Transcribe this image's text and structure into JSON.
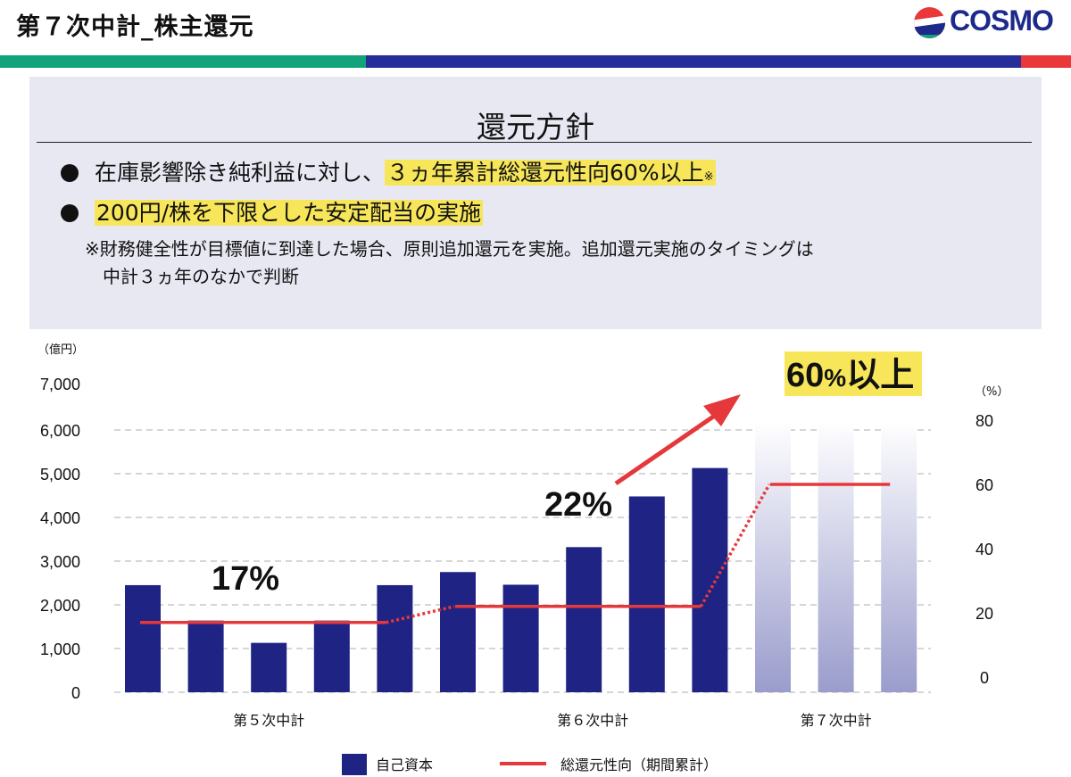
{
  "header": {
    "title": "第７次中計_株主還元",
    "logo_text": "COSMO"
  },
  "colors": {
    "green": "#12a37a",
    "blue": "#272e9a",
    "red": "#e9373a",
    "bar": "#1f2383",
    "line": "#e5383b",
    "highlight": "#f7e65a"
  },
  "policy": {
    "title": "還元方針",
    "bullet1_prefix": "在庫影響除き純利益に対し、",
    "bullet1_highlight": "３ヵ年累計総還元性向60%以上",
    "bullet1_mark": "※",
    "bullet2_highlight": "200円/株を下限とした安定配当の実施",
    "note_line1": "※財務健全性が目標値に到達した場合、原則追加還元を実施。追加還元実施のタイミングは",
    "note_line2": "中計３ヵ年のなかで判断"
  },
  "chart_data": {
    "type": "bar",
    "y_unit": "（億円）",
    "y2_unit": "（%）",
    "ylim": [
      0,
      7000
    ],
    "yticks": [
      "7,000",
      "6,000",
      "5,000",
      "4,000",
      "3,000",
      "2,000",
      "1,000",
      "0"
    ],
    "y2lim": [
      0,
      80
    ],
    "y2ticks": [
      "80",
      "60",
      "40",
      "20",
      "0"
    ],
    "grid": true,
    "groups": [
      "第５次中計",
      "第６次中計",
      "第７次中計"
    ],
    "series": [
      {
        "name": "自己資本",
        "type": "bar",
        "values": [
          2450,
          1640,
          1130,
          1640,
          2450,
          2750,
          2460,
          3320,
          4480,
          5130,
          null,
          null,
          null
        ],
        "projected": [
          false,
          false,
          false,
          false,
          false,
          false,
          false,
          false,
          false,
          false,
          true,
          true,
          true
        ]
      },
      {
        "name": "総還元性向（期間累計）",
        "type": "line",
        "segments": [
          {
            "value": 17,
            "from_bar": 0,
            "to_bar": 4
          },
          {
            "value": 22,
            "from_bar": 5,
            "to_bar": 9
          },
          {
            "value": 60,
            "from_bar": 10,
            "to_bar": 12
          }
        ]
      }
    ],
    "annotations": {
      "label_5th": "17%",
      "label_6th": "22%",
      "target_big": "60",
      "target_pct": "%",
      "target_suffix": "以上"
    },
    "legend": {
      "bar_label": "自己資本",
      "line_label": "総還元性向（期間累計）",
      "position": "bottom"
    }
  }
}
